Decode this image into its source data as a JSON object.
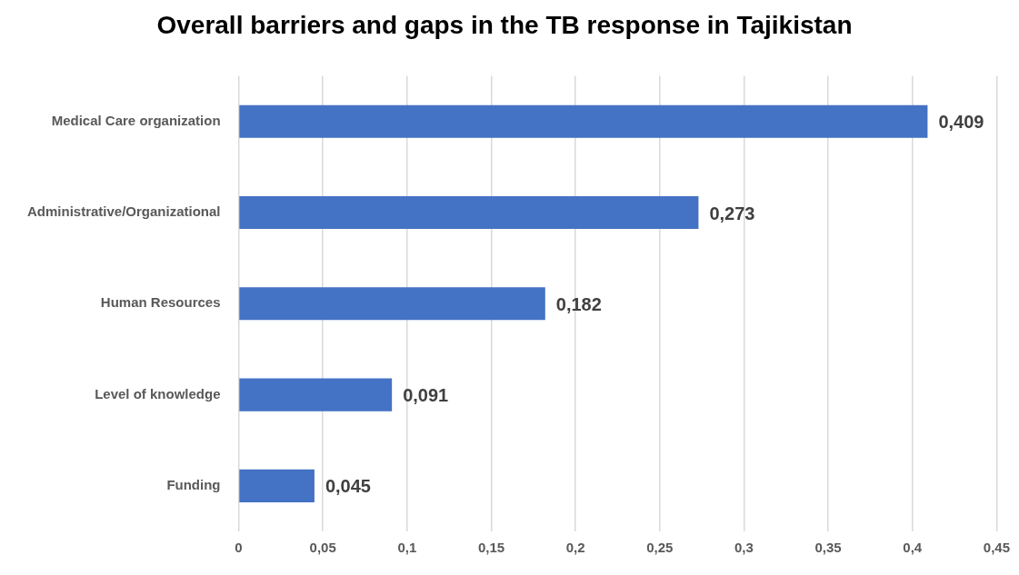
{
  "chart_data": {
    "type": "bar",
    "orientation": "horizontal",
    "title": "Overall barriers and gaps in the TB response in Tajikistan",
    "categories": [
      "Medical Care organization",
      "Administrative/Organizational",
      "Human Resources",
      "Level of knowledge",
      "Funding"
    ],
    "values": [
      0.409,
      0.273,
      0.182,
      0.091,
      0.045
    ],
    "value_labels": [
      "0,409",
      "0,273",
      "0,182",
      "0,091",
      "0,045"
    ],
    "color": "#4472c4",
    "xlim": [
      0,
      0.45
    ],
    "xticks": [
      0,
      {
        "value": 0.05,
        "label": "0,05"
      },
      {
        "value": 0.1,
        "label": "0,1"
      },
      {
        "value": 0.15,
        "label": "0,15"
      },
      {
        "value": 0.2,
        "label": "0,2"
      },
      {
        "value": 0.25,
        "label": "0,25"
      },
      {
        "value": 0.3,
        "label": "0,3"
      },
      {
        "value": 0.35,
        "label": "0,35"
      },
      {
        "value": 0.4,
        "label": "0,4"
      },
      {
        "value": 0.45,
        "label": "0,45"
      }
    ],
    "grid": "x",
    "legend": false
  }
}
